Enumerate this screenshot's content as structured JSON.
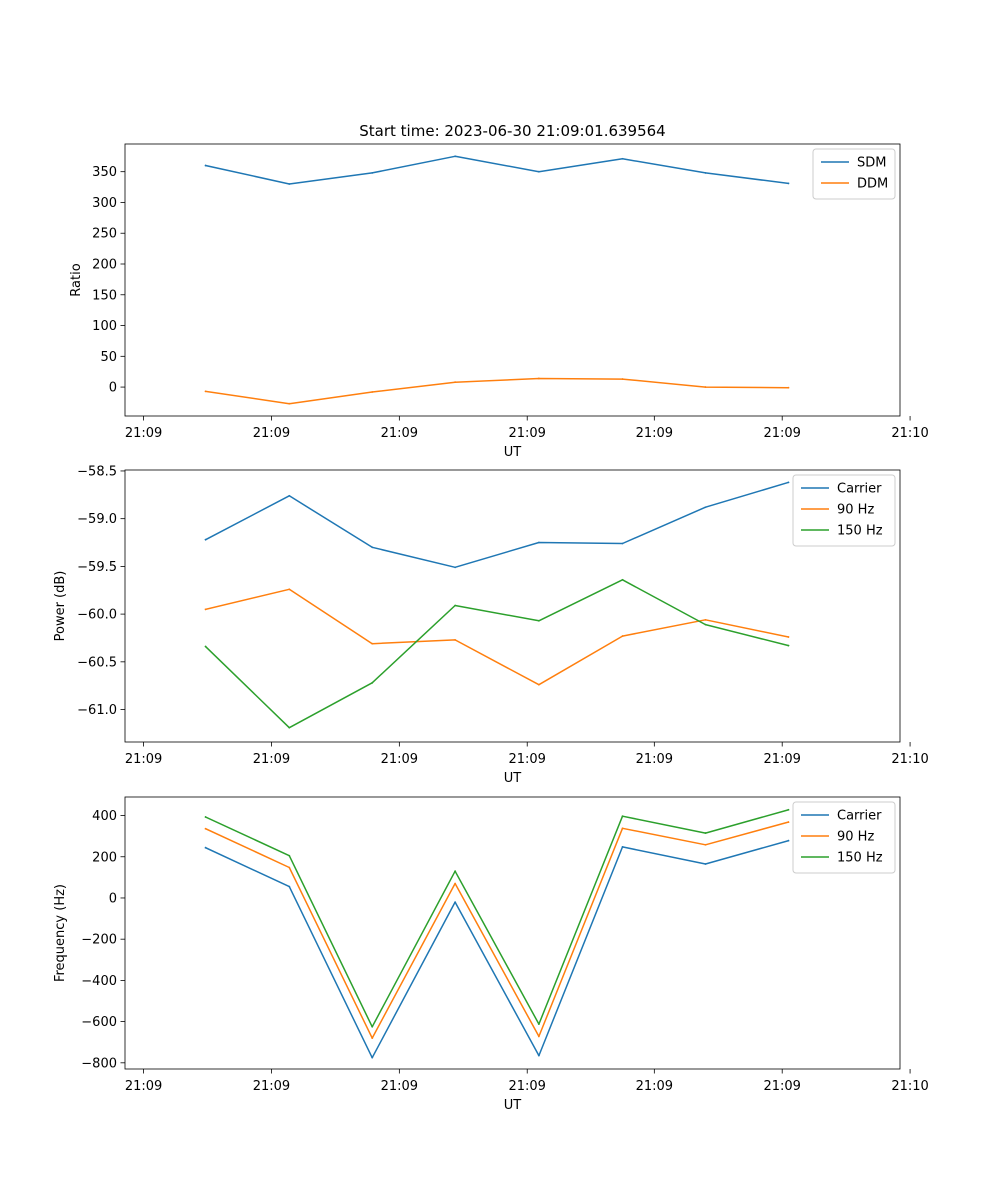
{
  "chart_data": [
    {
      "type": "line",
      "title": "Start time: 2023-06-30 21:09:01.639564",
      "xlabel": "UT",
      "ylabel": "Ratio",
      "xlim": [
        0,
        100
      ],
      "ylim": [
        -47,
        395
      ],
      "x_tick_positions": [
        2.4,
        18.9,
        35.4,
        51.9,
        68.3,
        84.8,
        101.3
      ],
      "x_tick_labels": [
        "21:09",
        "21:09",
        "21:09",
        "21:09",
        "21:09",
        "21:09",
        "21:10"
      ],
      "y_ticks": [
        0,
        50,
        100,
        150,
        200,
        250,
        300,
        350
      ],
      "y_tick_labels": [
        "0",
        "50",
        "100",
        "150",
        "200",
        "250",
        "300",
        "350"
      ],
      "x": [
        10.4,
        21.2,
        31.9,
        42.6,
        53.4,
        64.2,
        74.9,
        85.6
      ],
      "series": [
        {
          "name": "SDM",
          "color": "#1f77b4",
          "values": [
            360,
            330,
            348,
            375,
            350,
            371,
            348,
            331
          ]
        },
        {
          "name": "DDM",
          "color": "#ff7f0e",
          "values": [
            -7,
            -27,
            -8,
            8,
            14,
            13,
            0,
            -1
          ]
        }
      ],
      "legend_position": "top-right",
      "grid": false
    },
    {
      "type": "line",
      "title": "",
      "xlabel": "UT",
      "ylabel": "Power (dB)",
      "xlim": [
        0,
        100
      ],
      "ylim": [
        -61.34,
        -58.49
      ],
      "x_tick_positions": [
        2.4,
        18.9,
        35.4,
        51.9,
        68.3,
        84.8,
        101.3
      ],
      "x_tick_labels": [
        "21:09",
        "21:09",
        "21:09",
        "21:09",
        "21:09",
        "21:09",
        "21:10"
      ],
      "y_ticks": [
        -61.0,
        -60.5,
        -60.0,
        -59.5,
        -59.0,
        -58.5
      ],
      "y_tick_labels": [
        "−61.0",
        "−60.5",
        "−60.0",
        "−59.5",
        "−59.0",
        "−58.5"
      ],
      "x": [
        10.4,
        21.2,
        31.9,
        42.6,
        53.4,
        64.2,
        74.9,
        85.6
      ],
      "series": [
        {
          "name": "Carrier",
          "color": "#1f77b4",
          "values": [
            -59.22,
            -58.76,
            -59.3,
            -59.51,
            -59.25,
            -59.26,
            -58.88,
            -58.62
          ]
        },
        {
          "name": "90 Hz",
          "color": "#ff7f0e",
          "values": [
            -59.95,
            -59.74,
            -60.31,
            -60.27,
            -60.74,
            -60.23,
            -60.06,
            -60.24
          ]
        },
        {
          "name": "150 Hz",
          "color": "#2ca02c",
          "values": [
            -60.34,
            -61.19,
            -60.72,
            -59.91,
            -60.07,
            -59.64,
            -60.11,
            -60.33
          ]
        }
      ],
      "legend_position": "top-right",
      "grid": false
    },
    {
      "type": "line",
      "title": "",
      "xlabel": "UT",
      "ylabel": "Frequency (Hz)",
      "xlim": [
        0,
        100
      ],
      "ylim": [
        -830,
        490
      ],
      "x_tick_positions": [
        2.4,
        18.9,
        35.4,
        51.9,
        68.3,
        84.8,
        101.3
      ],
      "x_tick_labels": [
        "21:09",
        "21:09",
        "21:09",
        "21:09",
        "21:09",
        "21:09",
        "21:10"
      ],
      "y_ticks": [
        -800,
        -600,
        -400,
        -200,
        0,
        200,
        400
      ],
      "y_tick_labels": [
        "−800",
        "−600",
        "−400",
        "−200",
        "0",
        "200",
        "400"
      ],
      "x": [
        10.4,
        21.2,
        31.9,
        42.6,
        53.4,
        64.2,
        74.9,
        85.6
      ],
      "series": [
        {
          "name": "Carrier",
          "color": "#1f77b4",
          "values": [
            244,
            55,
            -775,
            -20,
            -765,
            248,
            165,
            278
          ]
        },
        {
          "name": "90 Hz",
          "color": "#ff7f0e",
          "values": [
            336,
            148,
            -680,
            70,
            -672,
            338,
            258,
            368
          ]
        },
        {
          "name": "150 Hz",
          "color": "#2ca02c",
          "values": [
            393,
            205,
            -625,
            130,
            -612,
            397,
            315,
            428
          ]
        }
      ],
      "legend_position": "top-right",
      "grid": false
    }
  ]
}
